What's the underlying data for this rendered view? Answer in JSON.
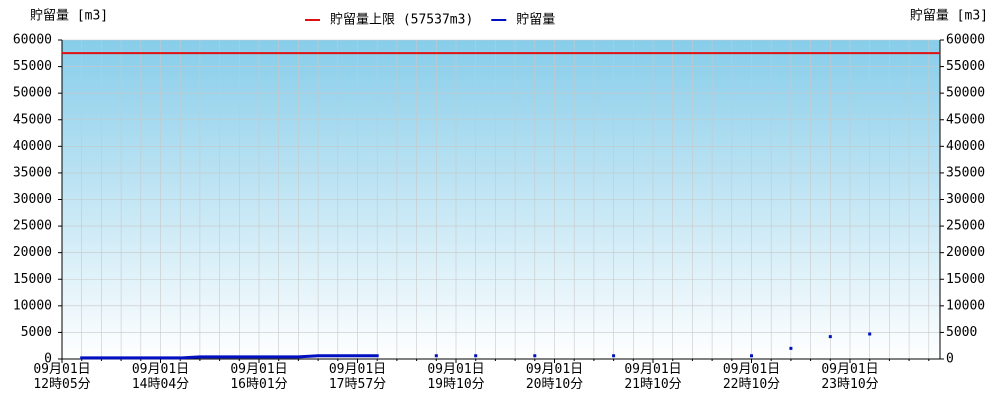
{
  "chart_data": {
    "type": "line",
    "y_label": "貯留量 [m3]",
    "y2_label": "貯留量 [m3]",
    "categories": [
      "09月01日\n12時05分",
      null,
      null,
      null,
      null,
      "09月01日\n14時04分",
      null,
      null,
      null,
      null,
      "09月01日\n16時01分",
      null,
      null,
      null,
      null,
      "09月01日\n17時57分",
      null,
      null,
      null,
      null,
      "09月01日\n19時10分",
      null,
      null,
      null,
      null,
      "09月01日\n20時10分",
      null,
      null,
      null,
      null,
      "09月01日\n21時10分",
      null,
      null,
      null,
      null,
      "09月01日\n22時10分",
      null,
      null,
      null,
      null,
      "09月01日\n23時10分",
      null,
      null,
      null,
      null
    ],
    "limit": {
      "name": "貯留量上限 (57537m3)",
      "value": 57537,
      "color": "#e01010"
    },
    "series": [
      {
        "name": "貯留量",
        "color": "#0010c0",
        "values": [
          null,
          200,
          200,
          200,
          200,
          200,
          200,
          400,
          400,
          400,
          400,
          400,
          400,
          600,
          600,
          600,
          600,
          null,
          null,
          600,
          null,
          600,
          null,
          null,
          600,
          null,
          null,
          null,
          600,
          null,
          null,
          null,
          null,
          null,
          null,
          600,
          null,
          2000,
          null,
          4200,
          null,
          4700,
          null,
          null,
          null
        ]
      }
    ],
    "ylim": [
      0,
      60000
    ],
    "yticks": [
      0,
      5000,
      10000,
      15000,
      20000,
      25000,
      30000,
      35000,
      40000,
      45000,
      50000,
      55000,
      60000
    ],
    "y2lim": [
      0,
      60000
    ],
    "y2ticks": [
      0,
      5000,
      10000,
      15000,
      20000,
      25000,
      30000,
      35000,
      40000,
      45000,
      50000,
      55000,
      60000
    ],
    "grid": true,
    "legend": "top"
  }
}
